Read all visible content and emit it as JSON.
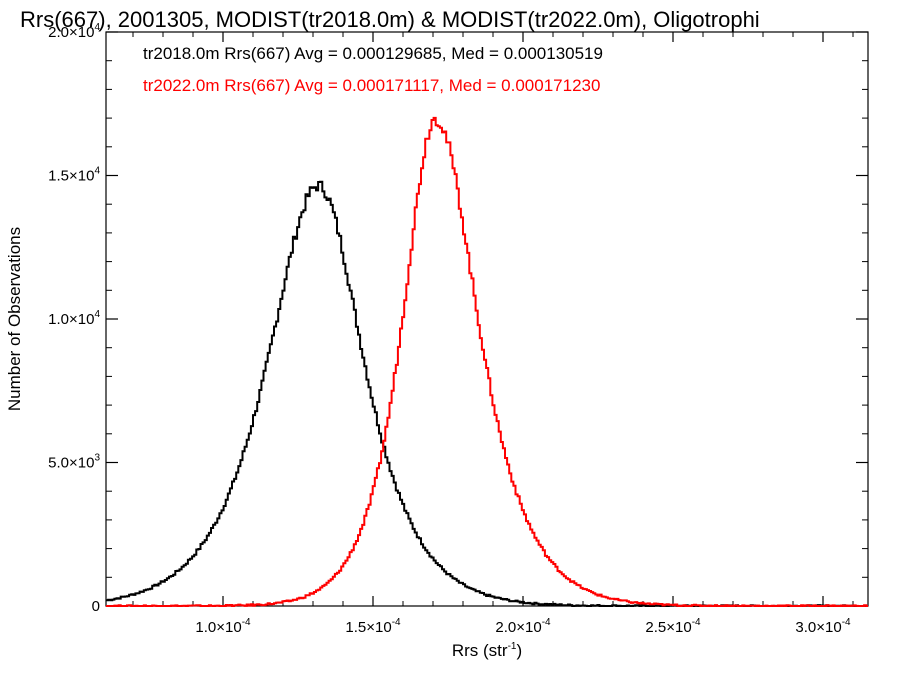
{
  "chart_data": {
    "type": "histogram-line",
    "title": "Rrs(667), 2001305, MODIST(tr2018.0m) & MODIST(tr2022.0m), Oligotrophi",
    "xlabel": "Rrs (str",
    "xlabel_sup": "-1",
    "xlabel_close": ")",
    "ylabel": "Number of Observations",
    "xlim": [
      6.1e-05,
      0.000315
    ],
    "ylim": [
      0,
      20000
    ],
    "xticks": [
      {
        "value": 0.0001,
        "mant": "1.0",
        "exp": "-4"
      },
      {
        "value": 0.00015,
        "mant": "1.5",
        "exp": "-4"
      },
      {
        "value": 0.0002,
        "mant": "2.0",
        "exp": "-4"
      },
      {
        "value": 0.00025,
        "mant": "2.5",
        "exp": "-4"
      },
      {
        "value": 0.0003,
        "mant": "3.0",
        "exp": "-4"
      }
    ],
    "yticks": [
      {
        "value": 0,
        "text": "0"
      },
      {
        "value": 5000,
        "mant": "5.0",
        "exp": "3"
      },
      {
        "value": 10000,
        "mant": "1.0",
        "exp": "4"
      },
      {
        "value": 15000,
        "mant": "1.5",
        "exp": "4"
      },
      {
        "value": 20000,
        "mant": "2.0",
        "exp": "4"
      }
    ],
    "series": [
      {
        "legend": "tr2018.0m Rrs(667) Avg = 0.000129685, Med = 0.000130519",
        "color": "#000000",
        "peak_x": 0.0001315,
        "peak_y": 14650,
        "sigma_left": 1.95e-05,
        "sigma_right": 1.75e-05
      },
      {
        "legend": "tr2022.0m Rrs(667) Avg = 0.000171117, Med = 0.000171230",
        "color": "#ff0000",
        "peak_x": 0.0001705,
        "peak_y": 17000,
        "sigma_left": 1.28e-05,
        "sigma_right": 1.65e-05
      }
    ],
    "grid": false,
    "legend_position": "top-left"
  }
}
